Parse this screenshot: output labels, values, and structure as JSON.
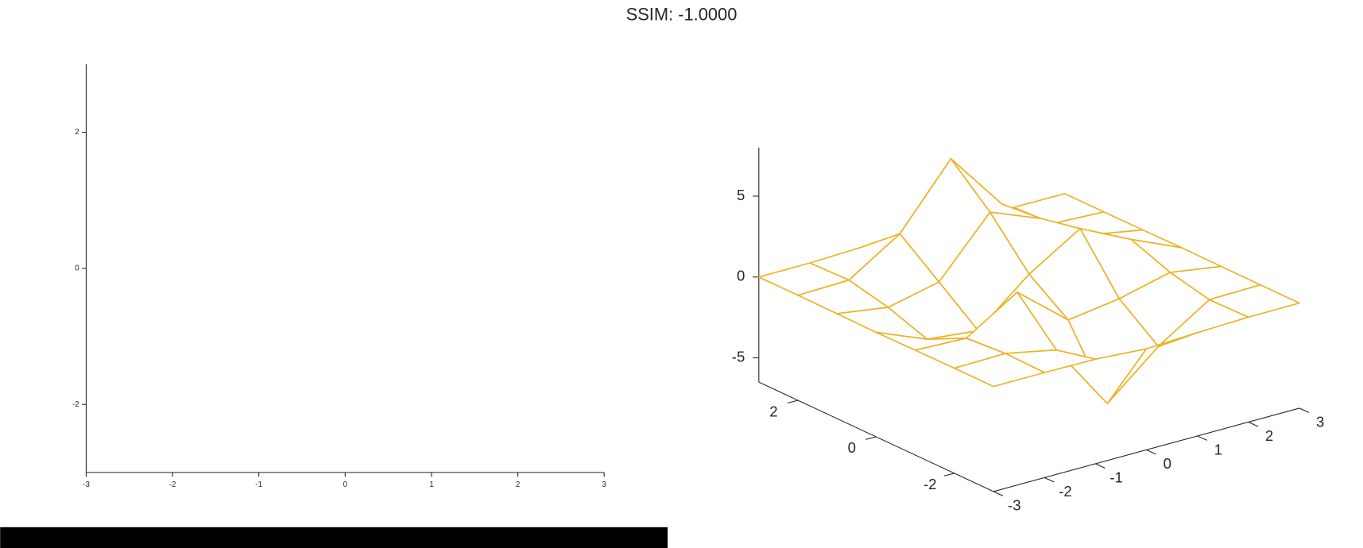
{
  "title": "SSIM: -1.0000",
  "chart_data": [
    {
      "type": "empty",
      "xlim": [
        -3,
        3
      ],
      "ylim": [
        -3,
        3
      ],
      "xticks": [
        -3,
        -2,
        -1,
        0,
        1,
        2,
        3
      ],
      "yticks": [
        -2,
        0,
        2
      ]
    },
    {
      "type": "mesh",
      "color": "#EDB120",
      "x": [
        -3,
        -2,
        -1,
        0,
        1,
        2,
        3
      ],
      "y": [
        -3,
        -2,
        -1,
        0,
        1,
        2,
        3
      ],
      "z": [
        [
          0,
          0,
          -0.03,
          -0.25,
          -0.11,
          -0.01,
          0
        ],
        [
          0,
          0.05,
          -0.59,
          -4.76,
          -2.09,
          -0.06,
          0
        ],
        [
          -0.01,
          -0.13,
          1.85,
          -0.72,
          -0.27,
          0.5,
          0.01
        ],
        [
          -0.04,
          -1.33,
          -1.65,
          0.98,
          2.94,
          1.41,
          0.03
        ],
        [
          -0.01,
          -0.48,
          0.23,
          3.69,
          2.43,
          0.58,
          0.01
        ],
        [
          0,
          0.08,
          2.08,
          5.86,
          2.2,
          0.13,
          0
        ],
        [
          0,
          0.01,
          0.11,
          0.3,
          0.11,
          0.01,
          0
        ]
      ],
      "xlim": [
        -3,
        3
      ],
      "ylim": [
        -3,
        3
      ],
      "zlim": [
        -6.5,
        8
      ],
      "xticks": [
        -3,
        -2,
        -1,
        0,
        1,
        2,
        3
      ],
      "yticks": [
        -2,
        0,
        2
      ],
      "zticks": [
        -5,
        0,
        5
      ]
    }
  ]
}
